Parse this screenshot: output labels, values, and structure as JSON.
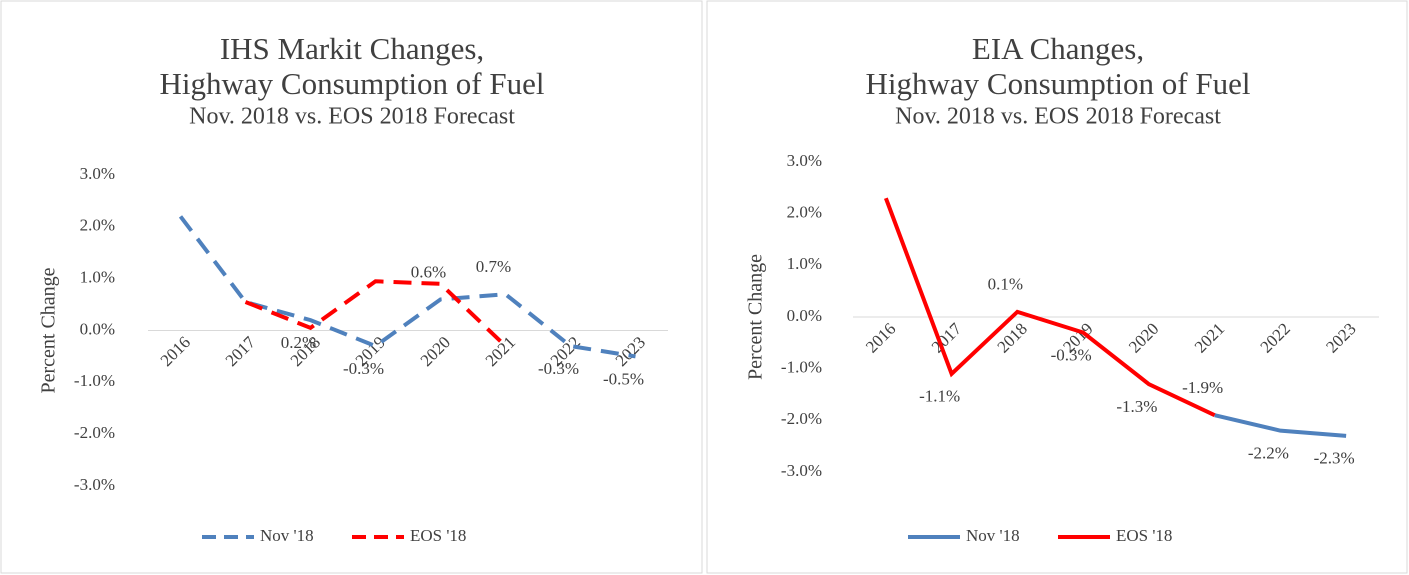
{
  "chart_data": [
    {
      "type": "line",
      "title": [
        "IHS Markit Changes,",
        "Highway Consumption of Fuel"
      ],
      "subtitle": "Nov. 2018 vs. EOS 2018 Forecast",
      "y_label": "Percent Change",
      "categories": [
        "2016",
        "2017",
        "2018",
        "2019",
        "2020",
        "2021",
        "2022",
        "2023"
      ],
      "series": [
        {
          "name": "Nov '18",
          "color": "#4f81bd",
          "dashed": true,
          "values": [
            2.2,
            0.55,
            0.2,
            -0.3,
            0.6,
            0.7,
            -0.3,
            -0.5
          ],
          "value_labels": [
            null,
            null,
            "0.2%",
            "-0.3%",
            "0.6%",
            "0.7%",
            "-0.3%",
            "-0.5%"
          ]
        },
        {
          "name": "EOS '18",
          "color": "#ff0000",
          "dashed": true,
          "values": [
            null,
            0.55,
            0.05,
            0.95,
            0.9,
            -0.3,
            null,
            null
          ]
        }
      ],
      "ylim": [
        -3,
        3
      ],
      "yticks": [
        {
          "value": -3,
          "label": "-3.0%"
        },
        {
          "value": -2,
          "label": "-2.0%"
        },
        {
          "value": -1,
          "label": "-1.0%"
        },
        {
          "value": 0,
          "label": "0.0%"
        },
        {
          "value": 1,
          "label": "1.0%"
        },
        {
          "value": 2,
          "label": "2.0%"
        },
        {
          "value": 3,
          "label": "3.0%"
        }
      ],
      "legend": "bottom"
    },
    {
      "type": "line",
      "title": [
        "EIA Changes,",
        "Highway Consumption of Fuel"
      ],
      "subtitle": "Nov. 2018 vs. EOS 2018 Forecast",
      "y_label": "Percent Change",
      "categories": [
        "2016",
        "2017",
        "2018",
        "2019",
        "2020",
        "2021",
        "2022",
        "2023"
      ],
      "series": [
        {
          "name": "Nov '18",
          "color": "#4f81bd",
          "dashed": false,
          "values": [
            null,
            null,
            null,
            null,
            null,
            -1.9,
            -2.2,
            -2.3
          ],
          "value_labels": [
            null,
            null,
            null,
            null,
            null,
            "-1.9%",
            "-2.2%",
            "-2.3%"
          ]
        },
        {
          "name": "EOS '18",
          "color": "#ff0000",
          "dashed": false,
          "values": [
            2.3,
            -1.1,
            0.1,
            -0.3,
            -1.3,
            -1.9,
            null,
            null
          ],
          "value_labels": [
            null,
            "-1.1%",
            "0.1%",
            "-0.3%",
            "-1.3%",
            null,
            null,
            null
          ]
        }
      ],
      "ylim": [
        -3,
        3
      ],
      "yticks": [
        {
          "value": -3,
          "label": "-3.0%"
        },
        {
          "value": -2,
          "label": "-2.0%"
        },
        {
          "value": -1,
          "label": "-1.0%"
        },
        {
          "value": 0,
          "label": "0.0%"
        },
        {
          "value": 1,
          "label": "1.0%"
        },
        {
          "value": 2,
          "label": "2.0%"
        },
        {
          "value": 3,
          "label": "3.0%"
        }
      ],
      "legend": "bottom"
    }
  ]
}
